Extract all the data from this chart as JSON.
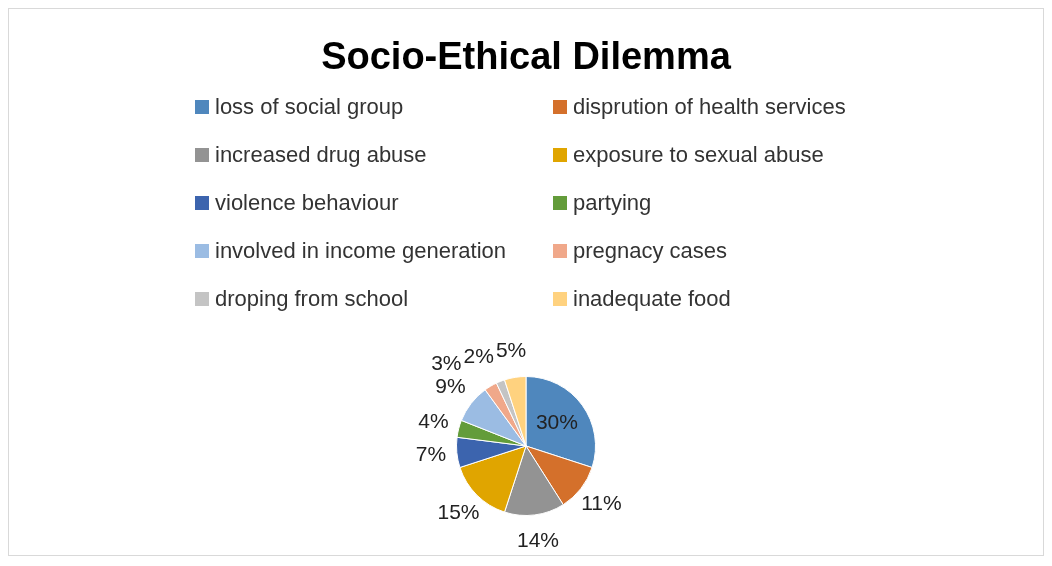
{
  "chart_data": {
    "type": "pie",
    "title": "Socio-Ethical Dilemma",
    "legend": "top",
    "categories": [
      "loss of social group",
      "disprution of health services",
      "increased drug abuse",
      "exposure to sexual abuse",
      "violence behaviour",
      "partying",
      "involved in income generation",
      "pregnacy cases",
      "droping from school",
      "inadequate food"
    ],
    "values": [
      30,
      11,
      14,
      15,
      7,
      4,
      9,
      3,
      2,
      5
    ],
    "value_labels": [
      "30%",
      "11%",
      "14%",
      "15%",
      "7%",
      "4%",
      "9%",
      "3%",
      "2%",
      "5%"
    ],
    "colors": [
      "#4f87bd",
      "#d4702b",
      "#939393",
      "#e0a500",
      "#3c64ae",
      "#639c3a",
      "#9bbce3",
      "#f0a88a",
      "#c4c4c4",
      "#ffd27f"
    ]
  }
}
